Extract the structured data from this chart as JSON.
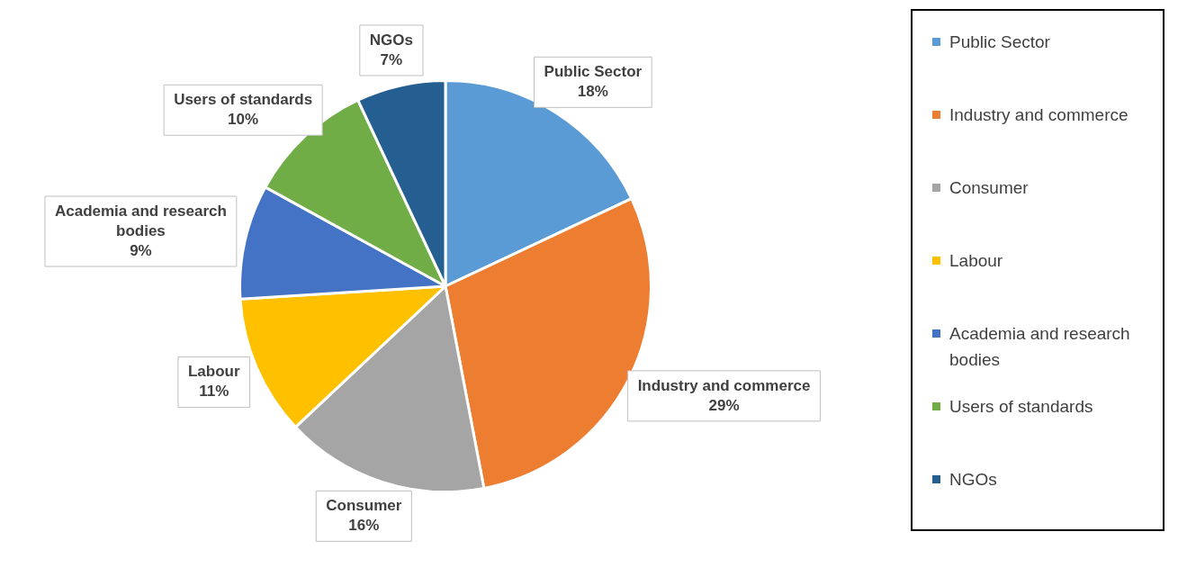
{
  "chart_data": {
    "type": "pie",
    "categories": [
      "Public Sector",
      "Industry and commerce",
      "Consumer",
      "Labour",
      "Academia and research bodies",
      "Users of standards",
      "NGOs"
    ],
    "values": [
      18,
      29,
      16,
      11,
      9,
      10,
      7
    ],
    "colors": [
      "#5b9bd5",
      "#ed7d31",
      "#a5a5a5",
      "#ffc000",
      "#4472c4",
      "#70ad47",
      "#255e91"
    ],
    "value_labels": [
      "18%",
      "29%",
      "16%",
      "11%",
      "9%",
      "10%",
      "7%"
    ],
    "legend": "right"
  }
}
